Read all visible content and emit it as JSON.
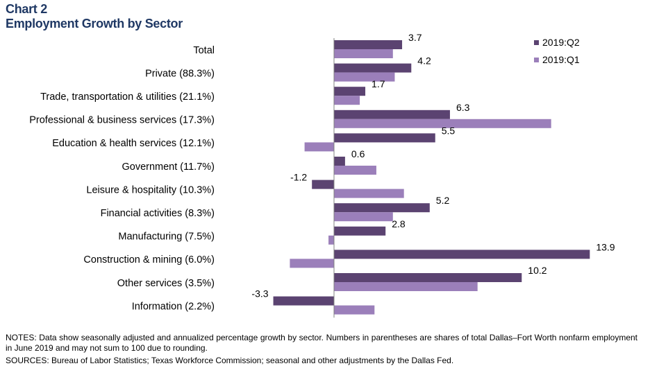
{
  "header": {
    "chart_number": "Chart 2",
    "title": "Employment Growth by Sector"
  },
  "chart_data": {
    "type": "bar",
    "orientation": "horizontal",
    "title": "Employment Growth by Sector",
    "categories": [
      "Total",
      "Private (88.3%)",
      "Trade, transportation & utilities (21.1%)",
      "Professional & business services (17.3%)",
      "Education & health services (12.1%)",
      "Government (11.7%)",
      "Leisure & hospitality (10.3%)",
      "Financial activities (8.3%)",
      "Manufacturing (7.5%)",
      "Construction & mining (6.0%)",
      "Other services (3.5%)",
      "Information (2.2%)"
    ],
    "series": [
      {
        "name": "2019:Q2",
        "color": "#5b4371",
        "values": [
          3.7,
          4.2,
          1.7,
          6.3,
          5.5,
          0.6,
          -1.2,
          5.2,
          2.8,
          13.9,
          10.2,
          -3.3
        ],
        "labels": [
          "3.7",
          "4.2",
          "1.7",
          "6.3",
          "5.5",
          "0.6",
          "-1.2",
          "5.2",
          "2.8",
          "13.9",
          "10.2",
          "-3.3"
        ]
      },
      {
        "name": "2019:Q1",
        "color": "#9b7fba",
        "values": [
          3.2,
          3.3,
          1.4,
          11.8,
          -1.6,
          2.3,
          3.8,
          3.2,
          -0.3,
          -2.4,
          7.8,
          2.2
        ]
      }
    ],
    "xlim": [
      -3.5,
      14.5
    ],
    "legend_position": "top-right",
    "grid": false
  },
  "notes": "NOTES: Data show seasonally adjusted and annualized percentage growth by sector. Numbers in parentheses are shares of total Dallas–Fort Worth nonfarm employment in June 2019 and may not sum to 100 due to rounding.",
  "sources": "SOURCES: Bureau of Labor Statistics; Texas Workforce Commission; seasonal and other adjustments by the Dallas Fed."
}
